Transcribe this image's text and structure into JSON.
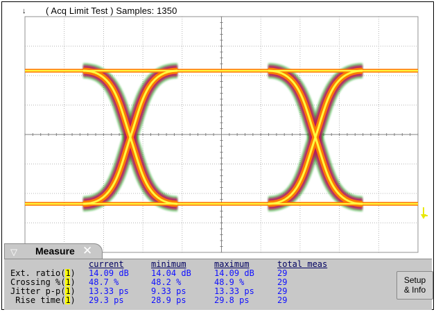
{
  "status": {
    "mode": "( Acq Limit Test )",
    "samples_label": "Samples:",
    "samples_value": "1350"
  },
  "measure_panel": {
    "tab_label": "Measure",
    "columns": [
      "current",
      "minimum",
      "maximum",
      "total meas"
    ],
    "rows": [
      {
        "label": "Ext. ratio",
        "source": "1",
        "current": "14.09 dB",
        "minimum": "14.04 dB",
        "maximum": "14.09 dB",
        "total": "29"
      },
      {
        "label": "Crossing %",
        "source": "1",
        "current": "48.7 %",
        "minimum": "48.2 %",
        "maximum": "48.9 %",
        "total": "29"
      },
      {
        "label": "Jitter p-p",
        "source": "1",
        "current": "13.33 ps",
        "minimum": "9.33 ps",
        "maximum": "13.33 ps",
        "total": "29"
      },
      {
        "label": " Rise time",
        "source": "1",
        "current": "29.3 ps",
        "minimum": "28.9 ps",
        "maximum": "29.8 ps",
        "total": "29"
      }
    ],
    "setup_button": {
      "line1": "Setup",
      "line2": "& Info"
    }
  },
  "colors": {
    "grid": "#909090",
    "trace_low": "#10a010",
    "trace_mid": "#c01060",
    "trace_high": "#ff8000",
    "trace_peak": "#ffff40",
    "value_text": "#1010ff",
    "panel_bg": "#c8c8c8"
  },
  "icons": {
    "trigger_marker": "down-arrow-icon",
    "channel_marker": "yellow-channel-arrow-icon",
    "tab_chevron": "chevron-down-icon",
    "tab_close": "close-icon"
  }
}
